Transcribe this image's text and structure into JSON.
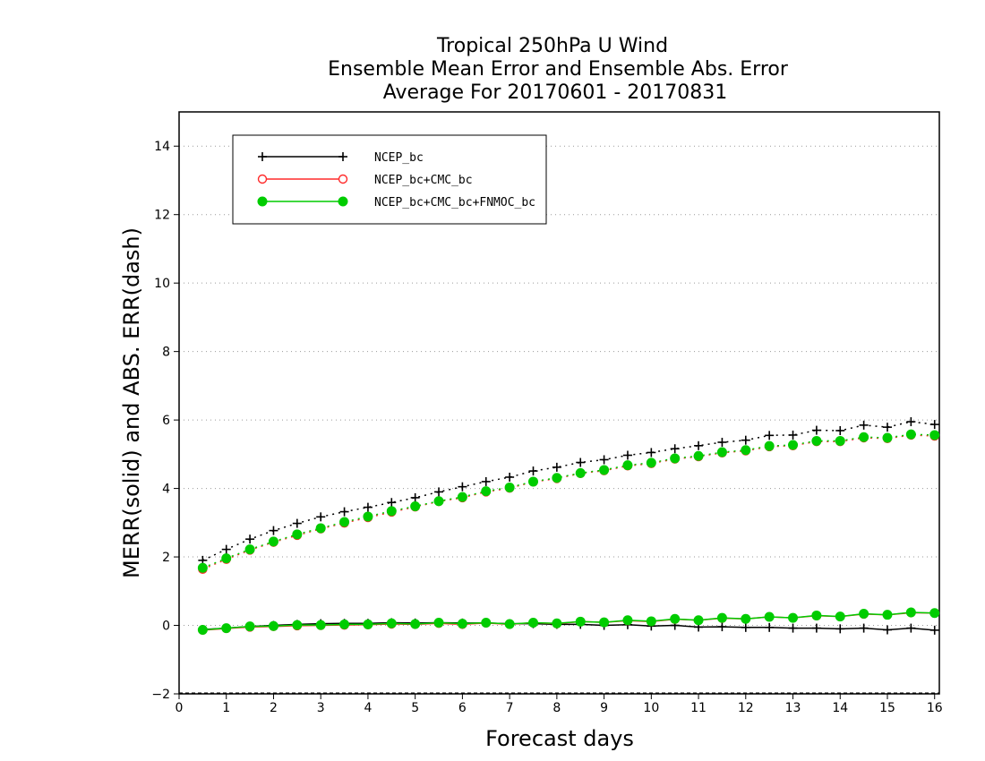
{
  "chart_data": {
    "type": "line",
    "title": [
      "Tropical 250hPa U Wind",
      "Ensemble Mean Error and Ensemble Abs. Error",
      "Average For 20170601 - 20170831"
    ],
    "xlabel": "Forecast days",
    "ylabel": "MERR(solid) and ABS. ERR(dash)",
    "xlim": [
      0,
      16.1
    ],
    "ylim": [
      -2,
      15
    ],
    "xticks": [
      0,
      1,
      2,
      3,
      4,
      5,
      6,
      7,
      8,
      9,
      10,
      11,
      12,
      13,
      14,
      15,
      16
    ],
    "yticks": [
      -2,
      0,
      2,
      4,
      6,
      8,
      10,
      12,
      14
    ],
    "grid": "horizontal-dotted",
    "legend_position": "top-left",
    "x": [
      0.5,
      1,
      1.5,
      2,
      2.5,
      3,
      3.5,
      4,
      4.5,
      5,
      5.5,
      6,
      6.5,
      7,
      7.5,
      8,
      8.5,
      9,
      9.5,
      10,
      10.5,
      11,
      11.5,
      12,
      12.5,
      13,
      13.5,
      14,
      14.5,
      15,
      15.5,
      16
    ],
    "series": [
      {
        "name": "NCEP_bc",
        "color": "#000000",
        "marker": "plus",
        "merr": [
          -0.12,
          -0.08,
          -0.03,
          0.0,
          0.03,
          0.05,
          0.06,
          0.06,
          0.08,
          0.07,
          0.08,
          0.07,
          0.07,
          0.05,
          0.05,
          0.03,
          0.03,
          0.0,
          0.02,
          -0.02,
          0.0,
          -0.05,
          -0.04,
          -0.06,
          -0.06,
          -0.08,
          -0.08,
          -0.1,
          -0.08,
          -0.13,
          -0.08,
          -0.14
        ],
        "abs_err": [
          1.9,
          2.22,
          2.52,
          2.77,
          2.98,
          3.17,
          3.32,
          3.45,
          3.59,
          3.73,
          3.9,
          4.05,
          4.2,
          4.33,
          4.51,
          4.62,
          4.76,
          4.84,
          4.97,
          5.05,
          5.16,
          5.25,
          5.35,
          5.41,
          5.55,
          5.56,
          5.7,
          5.69,
          5.85,
          5.79,
          5.95,
          5.87
        ]
      },
      {
        "name": "NCEP_bc+CMC_bc",
        "color": "#ff2a2a",
        "marker": "open-circle",
        "merr": [
          -0.14,
          -0.09,
          -0.05,
          -0.03,
          -0.01,
          0.0,
          0.01,
          0.02,
          0.04,
          0.03,
          0.06,
          0.03,
          0.07,
          0.03,
          0.08,
          0.05,
          0.11,
          0.09,
          0.14,
          0.11,
          0.18,
          0.15,
          0.21,
          0.19,
          0.25,
          0.22,
          0.28,
          0.26,
          0.33,
          0.31,
          0.37,
          0.36
        ],
        "abs_err": [
          1.64,
          1.93,
          2.2,
          2.43,
          2.63,
          2.82,
          2.99,
          3.15,
          3.31,
          3.46,
          3.62,
          3.73,
          3.9,
          4.01,
          4.19,
          4.29,
          4.44,
          4.52,
          4.66,
          4.73,
          4.86,
          4.93,
          5.04,
          5.1,
          5.22,
          5.25,
          5.37,
          5.37,
          5.48,
          5.46,
          5.56,
          5.53
        ]
      },
      {
        "name": "NCEP_bc+CMC_bc+FNMOC_bc",
        "color": "#00cc00",
        "marker": "filled-circle",
        "merr": [
          -0.13,
          -0.08,
          -0.03,
          -0.02,
          0.01,
          0.01,
          0.03,
          0.03,
          0.06,
          0.04,
          0.08,
          0.05,
          0.08,
          0.04,
          0.08,
          0.06,
          0.11,
          0.09,
          0.15,
          0.12,
          0.19,
          0.15,
          0.22,
          0.19,
          0.25,
          0.22,
          0.29,
          0.26,
          0.34,
          0.31,
          0.38,
          0.36
        ],
        "abs_err": [
          1.68,
          1.96,
          2.22,
          2.45,
          2.66,
          2.84,
          3.02,
          3.18,
          3.34,
          3.48,
          3.63,
          3.75,
          3.92,
          4.03,
          4.2,
          4.31,
          4.45,
          4.54,
          4.68,
          4.75,
          4.88,
          4.95,
          5.06,
          5.12,
          5.24,
          5.27,
          5.39,
          5.39,
          5.5,
          5.48,
          5.58,
          5.56
        ]
      }
    ]
  }
}
